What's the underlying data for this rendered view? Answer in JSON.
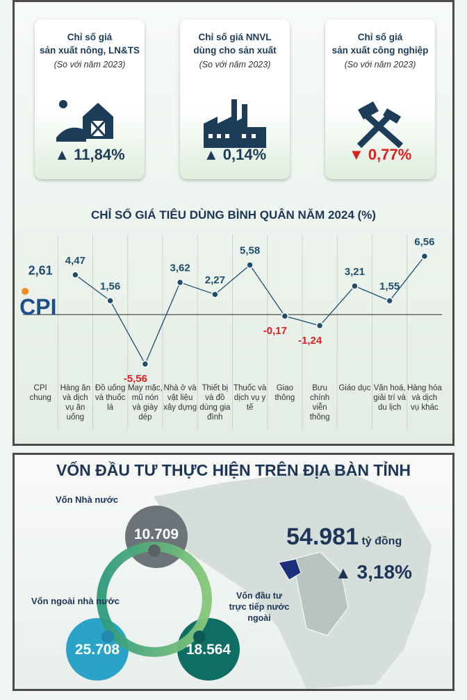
{
  "cards": [
    {
      "title_lines": [
        "Chỉ số giá",
        "sản xuất nông, LN&TS"
      ],
      "note": "(So với năm 2023)",
      "change": "11,84%"
    },
    {
      "title_lines": [
        "Chỉ số giá NNVL",
        "dùng cho sản xuất"
      ],
      "note": "(So với năm 2023)",
      "change": "0,14%"
    },
    {
      "title_lines": [
        "Chỉ số giá",
        "sản xuất công nghiệp"
      ],
      "note": "(So với năm 2023)",
      "change": "0,77%"
    }
  ],
  "chart_data": {
    "type": "line",
    "title": "CHỈ SỐ GIÁ TIÊU DÙNG BÌNH QUÂN NĂM 2024 (%)",
    "logo": "CPI",
    "categories": [
      "CPI chung",
      "Hàng ăn và dịch vụ ăn uống",
      "Đồ uống và thuốc lá",
      "May mặc, mũ nón và giày dép",
      "Nhà ở và vật liệu xây dựng",
      "Thiết bị và đồ dùng gia đình",
      "Thuốc và dịch vụ y tế",
      "Giao thông",
      "Bưu chính viễn thông",
      "Giáo dục",
      "Văn hoá, giải trí và du lịch",
      "Hàng hóa và dịch vụ khác"
    ],
    "values": [
      2.61,
      4.47,
      1.56,
      -5.56,
      3.62,
      2.27,
      5.58,
      -0.17,
      -1.24,
      3.21,
      1.55,
      6.56
    ],
    "value_labels": [
      "2,61",
      "4,47",
      "1,56",
      "-5,56",
      "3,62",
      "2,27",
      "5,58",
      "-0,17",
      "-1,24",
      "3,21",
      "1,55",
      "6,56"
    ],
    "ylim": [
      -7,
      8
    ],
    "color": "#1f4e6b",
    "negative_color": "#e01e1e"
  },
  "investment": {
    "title": "VỐN ĐẦU TƯ THỰC HIỆN TRÊN ĐỊA BÀN TỈNH",
    "total": "54.981",
    "unit": "tỷ đồng",
    "change": "3,18%",
    "parts": [
      {
        "label": "Vốn Nhà nước",
        "value": "10.709"
      },
      {
        "label": "Vốn ngoài nhà nước",
        "value": "25.708"
      },
      {
        "label": "Vốn đầu tư trực tiếp nước ngoài",
        "value": "18.564"
      }
    ]
  }
}
